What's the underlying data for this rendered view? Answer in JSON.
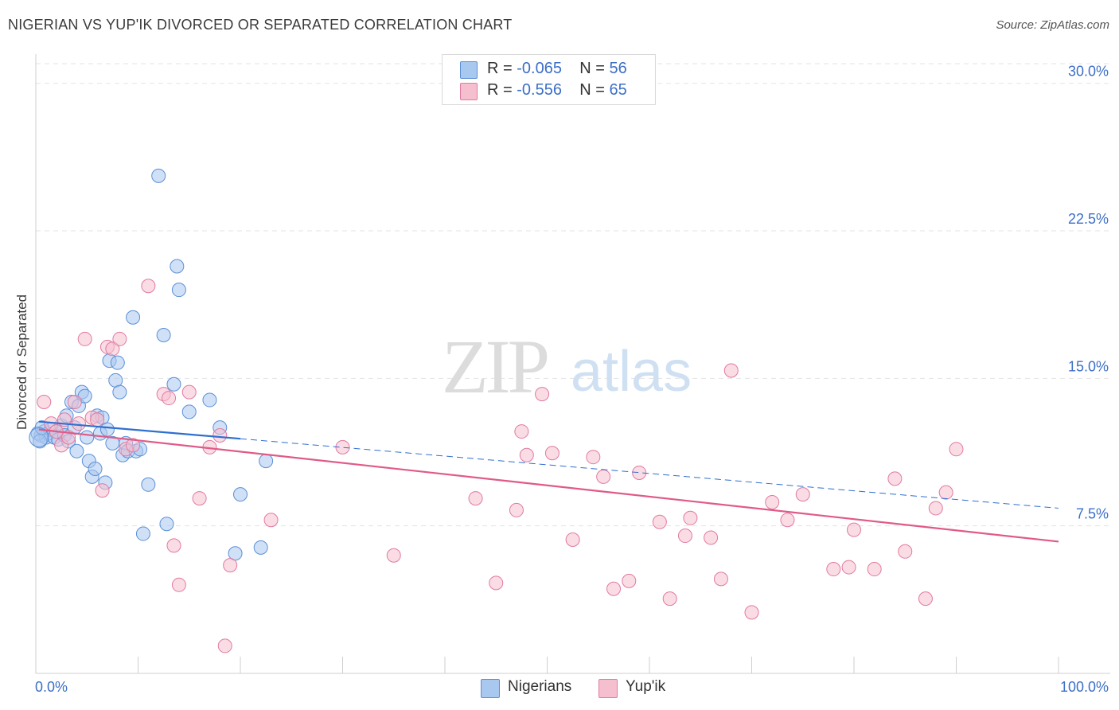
{
  "title": "NIGERIAN VS YUP'IK DIVORCED OR SEPARATED CORRELATION CHART",
  "source": "Source: ZipAtlas.com",
  "watermark": {
    "zip": "ZIP",
    "atlas": "atlas"
  },
  "legend": {
    "rows": [
      {
        "r_label": "R =",
        "r_value": "-0.065",
        "n_label": "N =",
        "n_value": "56",
        "color": "#a9c8f0",
        "stroke": "#5b8fd6"
      },
      {
        "r_label": "R =",
        "r_value": "-0.556",
        "n_label": "N =",
        "n_value": "65",
        "color": "#f6bfd0",
        "stroke": "#e27aa0"
      }
    ]
  },
  "bottom_legend": [
    {
      "label": "Nigerians",
      "color": "#a9c8f0",
      "stroke": "#5b8fd6"
    },
    {
      "label": "Yup'ik",
      "color": "#f6bfd0",
      "stroke": "#e27aa0"
    }
  ],
  "chart_data": {
    "type": "scatter",
    "title": "NIGERIAN VS YUP'IK DIVORCED OR SEPARATED CORRELATION CHART",
    "xlabel": "",
    "ylabel": "Divorced or Separated",
    "xlim": [
      0,
      100
    ],
    "ylim": [
      0,
      31
    ],
    "y_ticks": [
      {
        "value": 7.5,
        "label": "7.5%"
      },
      {
        "value": 15.0,
        "label": "15.0%"
      },
      {
        "value": 22.5,
        "label": "22.5%"
      },
      {
        "value": 30.0,
        "label": "30.0%"
      }
    ],
    "x_tick_labels": {
      "min": "0.0%",
      "max": "100.0%"
    },
    "x_tick_values": [
      0,
      10,
      20,
      30,
      40,
      50,
      60,
      70,
      80,
      90,
      100
    ],
    "grid": true,
    "series": [
      {
        "name": "Nigerians",
        "color": "#a9c8f0",
        "stroke": "#5b8fd6",
        "trend": {
          "x0": 0.3,
          "y0": 12.8,
          "x1": 100,
          "y1": 8.4,
          "solid_until": 20
        },
        "trend_color": "#2f6fd0",
        "points": [
          [
            0.5,
            12.1
          ],
          [
            0.8,
            12.3
          ],
          [
            1.0,
            12.0
          ],
          [
            1.2,
            12.2
          ],
          [
            1.5,
            12.4
          ],
          [
            1.8,
            12.0
          ],
          [
            2.0,
            12.3
          ],
          [
            2.2,
            11.9
          ],
          [
            2.5,
            12.6
          ],
          [
            2.8,
            12.1
          ],
          [
            3.0,
            13.1
          ],
          [
            3.2,
            11.8
          ],
          [
            3.5,
            13.8
          ],
          [
            3.8,
            12.5
          ],
          [
            4.0,
            11.3
          ],
          [
            4.2,
            13.6
          ],
          [
            4.5,
            14.3
          ],
          [
            4.8,
            14.1
          ],
          [
            5.0,
            12.0
          ],
          [
            5.2,
            10.8
          ],
          [
            5.5,
            10.0
          ],
          [
            5.8,
            10.4
          ],
          [
            6.0,
            13.1
          ],
          [
            6.3,
            12.2
          ],
          [
            6.5,
            13.0
          ],
          [
            6.8,
            9.7
          ],
          [
            7.0,
            12.4
          ],
          [
            7.2,
            15.9
          ],
          [
            7.5,
            11.7
          ],
          [
            7.8,
            14.9
          ],
          [
            8.0,
            15.8
          ],
          [
            8.2,
            14.3
          ],
          [
            8.5,
            11.1
          ],
          [
            8.8,
            11.7
          ],
          [
            9.0,
            11.3
          ],
          [
            9.5,
            18.1
          ],
          [
            9.8,
            11.3
          ],
          [
            10.2,
            11.4
          ],
          [
            10.5,
            7.1
          ],
          [
            11.0,
            9.6
          ],
          [
            12.0,
            25.3
          ],
          [
            12.5,
            17.2
          ],
          [
            12.8,
            7.6
          ],
          [
            13.5,
            14.7
          ],
          [
            13.8,
            20.7
          ],
          [
            14.0,
            19.5
          ],
          [
            15.0,
            13.3
          ],
          [
            17.0,
            13.9
          ],
          [
            18.0,
            12.5
          ],
          [
            19.5,
            6.1
          ],
          [
            20.0,
            9.1
          ],
          [
            22.0,
            6.4
          ],
          [
            22.5,
            10.8
          ],
          [
            0.2,
            12.2
          ],
          [
            0.4,
            11.8
          ],
          [
            0.6,
            12.5
          ]
        ]
      },
      {
        "name": "Yup'ik",
        "color": "#f6bfd0",
        "stroke": "#e27aa0",
        "trend": {
          "x0": 0.3,
          "y0": 12.4,
          "x1": 100,
          "y1": 6.7,
          "solid_until": 100
        },
        "trend_color": "#e05a88",
        "points": [
          [
            0.8,
            13.8
          ],
          [
            1.5,
            12.7
          ],
          [
            2.0,
            12.3
          ],
          [
            2.5,
            11.6
          ],
          [
            2.8,
            12.9
          ],
          [
            3.2,
            12.0
          ],
          [
            3.8,
            13.8
          ],
          [
            4.2,
            12.7
          ],
          [
            4.8,
            17.0
          ],
          [
            5.5,
            13.0
          ],
          [
            6.0,
            12.9
          ],
          [
            6.5,
            9.3
          ],
          [
            7.0,
            16.6
          ],
          [
            7.5,
            16.5
          ],
          [
            8.2,
            17.0
          ],
          [
            8.8,
            11.4
          ],
          [
            9.5,
            11.6
          ],
          [
            11.0,
            19.7
          ],
          [
            12.5,
            14.2
          ],
          [
            13.0,
            14.0
          ],
          [
            13.5,
            6.5
          ],
          [
            14.0,
            4.5
          ],
          [
            15.0,
            14.3
          ],
          [
            16.0,
            8.9
          ],
          [
            17.0,
            11.5
          ],
          [
            18.0,
            12.1
          ],
          [
            18.5,
            1.4
          ],
          [
            19.0,
            5.5
          ],
          [
            23.0,
            7.8
          ],
          [
            30.0,
            11.5
          ],
          [
            35.0,
            6.0
          ],
          [
            43.0,
            8.9
          ],
          [
            45.0,
            4.6
          ],
          [
            47.0,
            8.3
          ],
          [
            47.5,
            12.3
          ],
          [
            48.0,
            11.1
          ],
          [
            49.5,
            14.2
          ],
          [
            50.5,
            11.2
          ],
          [
            52.5,
            6.8
          ],
          [
            54.5,
            11.0
          ],
          [
            55.5,
            10.0
          ],
          [
            56.5,
            4.3
          ],
          [
            58.0,
            4.7
          ],
          [
            59.0,
            10.2
          ],
          [
            61.0,
            7.7
          ],
          [
            62.0,
            3.8
          ],
          [
            63.5,
            7.0
          ],
          [
            64.0,
            7.9
          ],
          [
            66.0,
            6.9
          ],
          [
            67.0,
            4.8
          ],
          [
            68.0,
            15.4
          ],
          [
            70.0,
            3.1
          ],
          [
            72.0,
            8.7
          ],
          [
            73.5,
            7.8
          ],
          [
            75.0,
            9.1
          ],
          [
            78.0,
            5.3
          ],
          [
            79.5,
            5.4
          ],
          [
            80.0,
            7.3
          ],
          [
            82.0,
            5.3
          ],
          [
            84.0,
            9.9
          ],
          [
            85.0,
            6.2
          ],
          [
            87.0,
            3.8
          ],
          [
            88.0,
            8.4
          ],
          [
            89.0,
            9.2
          ],
          [
            90.0,
            11.4
          ]
        ]
      }
    ]
  }
}
